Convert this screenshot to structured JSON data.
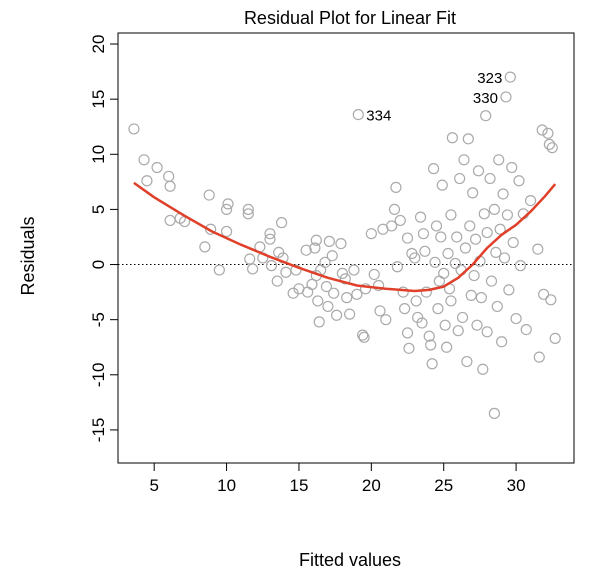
{
  "chart_data": {
    "type": "scatter",
    "title": "Residual Plot for Linear Fit",
    "xlabel": "Fitted values",
    "ylabel": "Residuals",
    "xlim": [
      2.5,
      34
    ],
    "ylim": [
      -18,
      21
    ],
    "xticks": [
      5,
      10,
      15,
      20,
      25,
      30
    ],
    "yticks": [
      -15,
      -10,
      -5,
      0,
      5,
      10,
      15,
      20
    ],
    "reference_line": {
      "y": 0,
      "style": "dotted"
    },
    "colors": {
      "points": "#aaaaaa",
      "smooth": "#e0402a",
      "reference": "#000000"
    },
    "points": [
      [
        3.6,
        12.3
      ],
      [
        4.3,
        9.5
      ],
      [
        4.5,
        7.6
      ],
      [
        5.2,
        8.8
      ],
      [
        6.0,
        8.0
      ],
      [
        6.1,
        7.1
      ],
      [
        6.1,
        4.0
      ],
      [
        6.8,
        4.2
      ],
      [
        7.1,
        3.9
      ],
      [
        8.5,
        1.6
      ],
      [
        8.8,
        6.3
      ],
      [
        8.9,
        3.2
      ],
      [
        9.5,
        -0.5
      ],
      [
        10.0,
        3.0
      ],
      [
        10.0,
        5.0
      ],
      [
        10.1,
        5.5
      ],
      [
        11.5,
        5.0
      ],
      [
        11.5,
        4.6
      ],
      [
        11.6,
        0.5
      ],
      [
        11.8,
        -0.4
      ],
      [
        12.3,
        1.6
      ],
      [
        12.5,
        0.6
      ],
      [
        13.0,
        2.8
      ],
      [
        13.0,
        2.3
      ],
      [
        13.1,
        -0.1
      ],
      [
        13.5,
        -1.5
      ],
      [
        13.6,
        1.1
      ],
      [
        13.8,
        3.8
      ],
      [
        13.9,
        0.6
      ],
      [
        14.1,
        -0.7
      ],
      [
        14.6,
        -2.6
      ],
      [
        14.8,
        -0.5
      ],
      [
        15.0,
        -2.2
      ],
      [
        15.5,
        1.3
      ],
      [
        15.6,
        -2.5
      ],
      [
        15.9,
        -1.8
      ],
      [
        16.1,
        1.5
      ],
      [
        16.2,
        2.2
      ],
      [
        16.2,
        -1.0
      ],
      [
        16.3,
        -3.3
      ],
      [
        16.4,
        -5.2
      ],
      [
        16.5,
        -0.5
      ],
      [
        16.8,
        0.2
      ],
      [
        16.9,
        -2.0
      ],
      [
        17.0,
        -3.8
      ],
      [
        17.1,
        2.1
      ],
      [
        17.3,
        0.8
      ],
      [
        17.4,
        -2.6
      ],
      [
        17.6,
        -4.6
      ],
      [
        17.9,
        1.9
      ],
      [
        18.0,
        -0.8
      ],
      [
        18.2,
        -1.3
      ],
      [
        18.3,
        -3.0
      ],
      [
        18.5,
        -4.5
      ],
      [
        18.8,
        -0.5
      ],
      [
        19.0,
        -2.7
      ],
      [
        19.1,
        13.6
      ],
      [
        19.4,
        -6.4
      ],
      [
        19.5,
        -6.6
      ],
      [
        19.6,
        -2.2
      ],
      [
        20.0,
        2.8
      ],
      [
        20.2,
        -0.9
      ],
      [
        20.5,
        -1.9
      ],
      [
        20.6,
        -4.2
      ],
      [
        20.8,
        3.2
      ],
      [
        21.0,
        -5.0
      ],
      [
        21.4,
        3.5
      ],
      [
        21.6,
        5.0
      ],
      [
        21.7,
        7.0
      ],
      [
        21.8,
        -0.2
      ],
      [
        22.0,
        4.0
      ],
      [
        22.2,
        -2.5
      ],
      [
        22.3,
        -4.0
      ],
      [
        22.5,
        2.4
      ],
      [
        22.5,
        -6.2
      ],
      [
        22.6,
        -7.6
      ],
      [
        22.8,
        1.0
      ],
      [
        23.0,
        0.6
      ],
      [
        23.1,
        -3.3
      ],
      [
        23.2,
        -4.8
      ],
      [
        23.4,
        4.3
      ],
      [
        23.5,
        -5.3
      ],
      [
        23.6,
        2.8
      ],
      [
        23.7,
        1.2
      ],
      [
        23.8,
        -2.5
      ],
      [
        24.0,
        -6.5
      ],
      [
        24.1,
        -7.3
      ],
      [
        24.2,
        -9.0
      ],
      [
        24.3,
        8.7
      ],
      [
        24.4,
        0.2
      ],
      [
        24.5,
        3.5
      ],
      [
        24.6,
        -4.0
      ],
      [
        24.7,
        -1.5
      ],
      [
        24.8,
        2.5
      ],
      [
        24.9,
        7.2
      ],
      [
        25.0,
        -0.8
      ],
      [
        25.1,
        -5.5
      ],
      [
        25.2,
        -7.5
      ],
      [
        25.3,
        1.0
      ],
      [
        25.4,
        -2.2
      ],
      [
        25.5,
        4.5
      ],
      [
        25.5,
        -3.3
      ],
      [
        25.6,
        11.5
      ],
      [
        25.8,
        0.1
      ],
      [
        25.9,
        2.5
      ],
      [
        26.0,
        -6.0
      ],
      [
        26.1,
        7.8
      ],
      [
        26.2,
        -0.5
      ],
      [
        26.3,
        -4.8
      ],
      [
        26.4,
        9.5
      ],
      [
        26.5,
        1.5
      ],
      [
        26.6,
        -8.8
      ],
      [
        26.7,
        11.4
      ],
      [
        26.8,
        3.5
      ],
      [
        26.9,
        -2.8
      ],
      [
        27.0,
        6.5
      ],
      [
        27.1,
        -1.0
      ],
      [
        27.2,
        2.3
      ],
      [
        27.3,
        -5.5
      ],
      [
        27.4,
        8.5
      ],
      [
        27.5,
        0.3
      ],
      [
        27.6,
        -3.0
      ],
      [
        27.7,
        -9.5
      ],
      [
        27.8,
        4.6
      ],
      [
        27.9,
        13.5
      ],
      [
        28.0,
        2.9
      ],
      [
        28.0,
        -6.1
      ],
      [
        28.2,
        7.8
      ],
      [
        28.3,
        -1.5
      ],
      [
        28.5,
        5.0
      ],
      [
        28.5,
        -13.5
      ],
      [
        28.6,
        1.1
      ],
      [
        28.7,
        -3.8
      ],
      [
        28.8,
        9.5
      ],
      [
        28.9,
        3.2
      ],
      [
        29.0,
        -7.0
      ],
      [
        29.1,
        6.4
      ],
      [
        29.2,
        0.6
      ],
      [
        29.3,
        15.2
      ],
      [
        29.4,
        4.5
      ],
      [
        29.5,
        -2.3
      ],
      [
        29.6,
        17.0
      ],
      [
        29.7,
        8.8
      ],
      [
        29.8,
        2.0
      ],
      [
        30.0,
        -4.9
      ],
      [
        30.2,
        7.6
      ],
      [
        30.3,
        -0.1
      ],
      [
        30.5,
        4.6
      ],
      [
        30.7,
        -5.9
      ],
      [
        31.0,
        5.8
      ],
      [
        31.5,
        1.4
      ],
      [
        31.6,
        -8.4
      ],
      [
        31.8,
        12.2
      ],
      [
        31.9,
        -2.7
      ],
      [
        32.2,
        11.9
      ],
      [
        32.3,
        10.9
      ],
      [
        32.4,
        -3.2
      ],
      [
        32.5,
        10.6
      ],
      [
        32.7,
        -6.7
      ]
    ],
    "smooth_curve": [
      [
        3.6,
        7.4
      ],
      [
        5.0,
        6.1
      ],
      [
        7.0,
        4.5
      ],
      [
        9.0,
        3.0
      ],
      [
        11.0,
        1.8
      ],
      [
        13.0,
        0.7
      ],
      [
        15.0,
        -0.3
      ],
      [
        17.0,
        -1.2
      ],
      [
        19.0,
        -1.9
      ],
      [
        21.0,
        -2.2
      ],
      [
        23.0,
        -2.4
      ],
      [
        24.0,
        -2.3
      ],
      [
        25.0,
        -2.0
      ],
      [
        26.0,
        -1.2
      ],
      [
        27.0,
        0.0
      ],
      [
        28.0,
        1.5
      ],
      [
        29.0,
        2.7
      ],
      [
        30.0,
        3.6
      ],
      [
        31.0,
        4.8
      ],
      [
        32.0,
        6.2
      ],
      [
        32.7,
        7.3
      ]
    ],
    "annotations": [
      {
        "label": "334",
        "x": 19.1,
        "y": 13.6,
        "anchor": "right"
      },
      {
        "label": "323",
        "x": 29.6,
        "y": 17.0,
        "anchor": "left"
      },
      {
        "label": "330",
        "x": 29.3,
        "y": 15.2,
        "anchor": "left"
      }
    ]
  }
}
